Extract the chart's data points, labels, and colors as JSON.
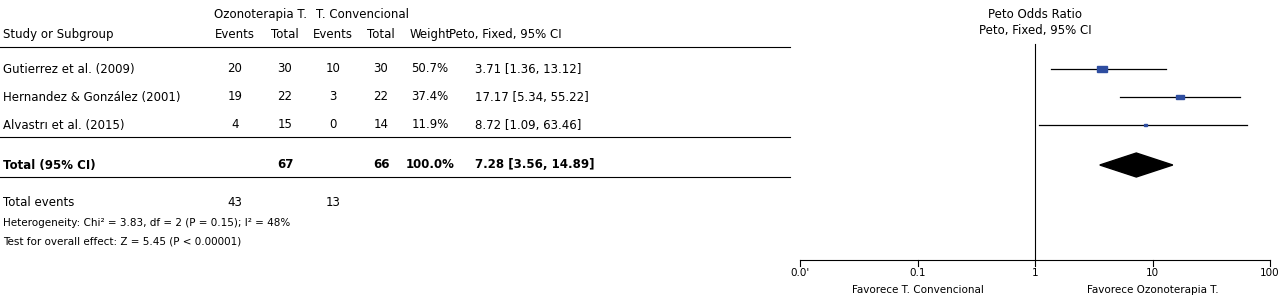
{
  "studies": [
    {
      "name": "Gutierrez et al. (2009)",
      "oz_events": 20,
      "oz_total": 30,
      "conv_events": 10,
      "conv_total": 30,
      "weight": "50.7%",
      "or": 3.71,
      "ci_low": 1.36,
      "ci_high": 13.12,
      "or_text": "3.71 [1.36, 13.12]"
    },
    {
      "name": "Hernandez & González (2001)",
      "oz_events": 19,
      "oz_total": 22,
      "conv_events": 3,
      "conv_total": 22,
      "weight": "37.4%",
      "or": 17.17,
      "ci_low": 5.34,
      "ci_high": 55.22,
      "or_text": "17.17 [5.34, 55.22]"
    },
    {
      "name": "Alvastrı et al. (2015)",
      "oz_events": 4,
      "oz_total": 15,
      "conv_events": 0,
      "conv_total": 14,
      "weight": "11.9%",
      "or": 8.72,
      "ci_low": 1.09,
      "ci_high": 63.46,
      "or_text": "8.72 [1.09, 63.46]"
    }
  ],
  "total": {
    "oz_total": 67,
    "conv_total": 66,
    "oz_events": 43,
    "conv_events": 13,
    "weight": "100.0%",
    "or": 7.28,
    "ci_low": 3.56,
    "ci_high": 14.89,
    "or_text": "7.28 [3.56, 14.89]"
  },
  "heterogeneity": "Heterogeneity: Chi² = 3.83, df = 2 (P = 0.15); I² = 48%",
  "test_effect": "Test for overall effect: Z = 5.45 (P < 0.00001)",
  "col_header1": "Ozonoterapia T.",
  "col_header2": "T. Convencional",
  "col_sub1": "Events",
  "col_sub2": "Total",
  "col_sub3": "Events",
  "col_sub4": "Total",
  "col_sub5": "Weight",
  "col_sub6": "Peto, Fixed, 95% CI",
  "plot_header": "Peto Odds Ratio",
  "plot_subheader": "Peto, Fixed, 95% CI",
  "x_label_left": "Favorece T. Convencional",
  "x_label_right": "Favorece Ozonoterapia T.",
  "study_label": "Study or Subgroup",
  "total_label": "Total (95% CI)",
  "total_events_label": "Total events",
  "square_color": "#2e4da0",
  "diamond_color": "#000000",
  "line_color": "#000000",
  "text_color": "#000000",
  "bg_color": "#ffffff",
  "log_min": -2,
  "log_max": 2,
  "ticks": [
    0.01,
    0.1,
    1,
    10,
    100
  ],
  "tick_labels": [
    "0.0'",
    "0.1",
    "1",
    "10",
    "100"
  ]
}
